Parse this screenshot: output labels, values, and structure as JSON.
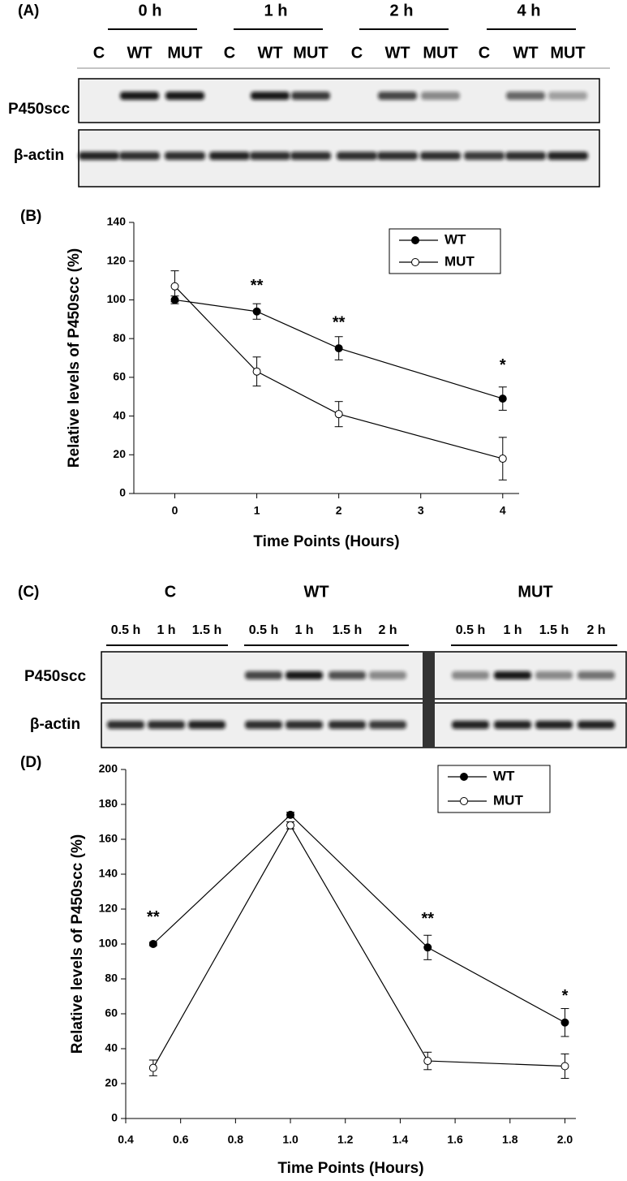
{
  "panel_a": {
    "label": "(A)",
    "groups": [
      {
        "label": "0 h",
        "lanes": [
          "C",
          "WT",
          "MUT"
        ]
      },
      {
        "label": "1 h",
        "lanes": [
          "C",
          "WT",
          "MUT"
        ]
      },
      {
        "label": "2 h",
        "lanes": [
          "C",
          "WT",
          "MUT"
        ]
      },
      {
        "label": "4 h",
        "lanes": [
          "C",
          "WT",
          "MUT"
        ]
      }
    ],
    "rows": [
      "P450scc",
      "β-actin"
    ]
  },
  "panel_c": {
    "label": "(C)",
    "groups": [
      {
        "label": "C",
        "lanes": [
          "0.5 h",
          "1 h",
          "1.5 h"
        ]
      },
      {
        "label": "WT",
        "lanes": [
          "0.5 h",
          "1 h",
          "1.5 h",
          "2 h"
        ]
      },
      {
        "label": "MUT",
        "lanes": [
          "0.5 h",
          "1 h",
          "1.5 h",
          "2 h"
        ]
      }
    ],
    "rows": [
      "P450scc",
      "β-actin"
    ]
  },
  "chart_data": [
    {
      "type": "line",
      "panel_label": "(B)",
      "xlabel": "Time Points (Hours)",
      "ylabel": "Relative levels of P450scc (%)",
      "x": [
        0,
        1,
        2,
        4
      ],
      "xlim": [
        -0.5,
        4.2
      ],
      "xticks": [
        0,
        1,
        2,
        3,
        4
      ],
      "ylim": [
        0,
        140
      ],
      "yticks": [
        0,
        20,
        40,
        60,
        80,
        100,
        120,
        140
      ],
      "legend": "upper right",
      "series": [
        {
          "name": "WT",
          "color": "#000000",
          "marker_fill": "#000000",
          "values": [
            100,
            94,
            75,
            49
          ],
          "errors": [
            2,
            4,
            6,
            6
          ]
        },
        {
          "name": "MUT",
          "color": "#000000",
          "marker_fill": "#ffffff",
          "values": [
            107,
            63,
            41,
            18
          ],
          "errors": [
            8,
            7.5,
            6.5,
            11
          ]
        }
      ],
      "annotations": [
        {
          "text": "**",
          "x": 1,
          "y": 107
        },
        {
          "text": "**",
          "x": 2,
          "y": 88
        },
        {
          "text": "*",
          "x": 4,
          "y": 66
        }
      ]
    },
    {
      "type": "line",
      "panel_label": "(D)",
      "xlabel": "Time Points (Hours)",
      "ylabel": "Relative levels of P450scc (%)",
      "x": [
        0.5,
        1,
        1.5,
        2
      ],
      "xlim": [
        0.4,
        2.04
      ],
      "xticks": [
        0.4,
        0.6,
        0.8,
        {
          "value": 1,
          "label": "1.0"
        },
        1.2,
        1.4,
        1.6,
        1.8,
        {
          "value": 2,
          "label": "2.0"
        }
      ],
      "ylim": [
        0,
        200
      ],
      "yticks": [
        0,
        20,
        40,
        60,
        80,
        100,
        120,
        140,
        160,
        180,
        200
      ],
      "legend": "upper right",
      "series": [
        {
          "name": "WT",
          "color": "#000000",
          "marker_fill": "#000000",
          "values": [
            100,
            174,
            98,
            55
          ],
          "errors": [
            1,
            1.5,
            7,
            8
          ]
        },
        {
          "name": "MUT",
          "color": "#000000",
          "marker_fill": "#ffffff",
          "values": [
            29,
            168,
            33,
            30
          ],
          "errors": [
            4.5,
            2,
            5,
            7
          ]
        }
      ],
      "annotations": [
        {
          "text": "**",
          "x": 0.5,
          "y": 115
        },
        {
          "text": "**",
          "x": 1.5,
          "y": 114
        },
        {
          "text": "*",
          "x": 2,
          "y": 70
        }
      ]
    }
  ]
}
